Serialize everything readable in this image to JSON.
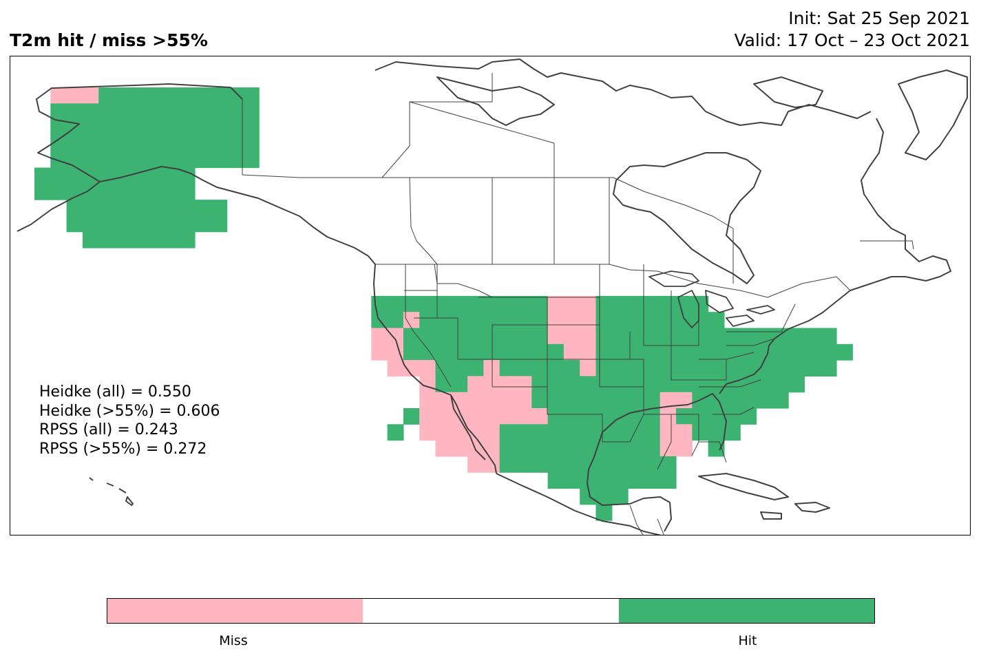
{
  "header": {
    "title": "T2m hit / miss  >55%",
    "init": "Init: Sat 25 Sep 2021",
    "valid": "Valid: 17 Oct – 23 Oct 2021"
  },
  "scores": [
    "Heidke (all) = 0.550",
    "Heidke (>55%) = 0.606",
    "RPSS (all) = 0.243",
    "RPSS (>55%) = 0.272"
  ],
  "colors": {
    "miss": "#ffb6c1",
    "neutral": "#ffffff",
    "hit": "#3cb371",
    "coastline": "#404040"
  },
  "colorbar": {
    "miss_label": "Miss",
    "hit_label": "Hit"
  }
}
